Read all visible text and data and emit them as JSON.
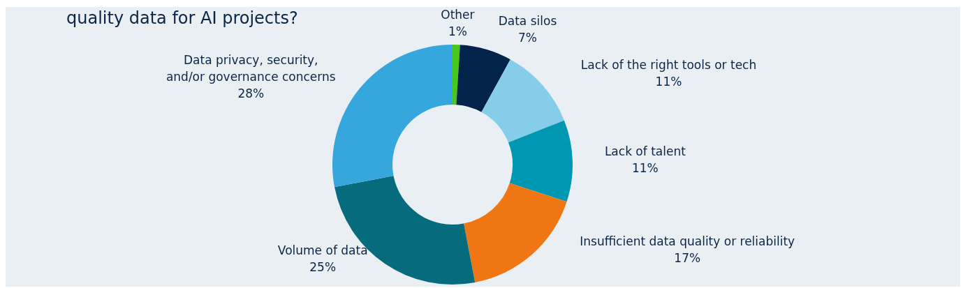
{
  "chart_data": {
    "type": "donut",
    "title": "quality data for AI projects?",
    "categories": [
      "Other",
      "Data silos",
      "Lack of the right tools or tech",
      "Lack of talent",
      "Insufficient data quality or reliability",
      "Volume of data",
      "Data privacy, security, and/or governance concerns"
    ],
    "values": [
      1,
      7,
      11,
      11,
      17,
      25,
      28
    ],
    "value_labels": [
      "1%",
      "7%",
      "11%",
      "11%",
      "17%",
      "25%",
      "28%"
    ],
    "colors": [
      "#47c71b",
      "#03244a",
      "#86cdea",
      "#0097b2",
      "#f07613",
      "#066b7d",
      "#35a7dd"
    ]
  }
}
